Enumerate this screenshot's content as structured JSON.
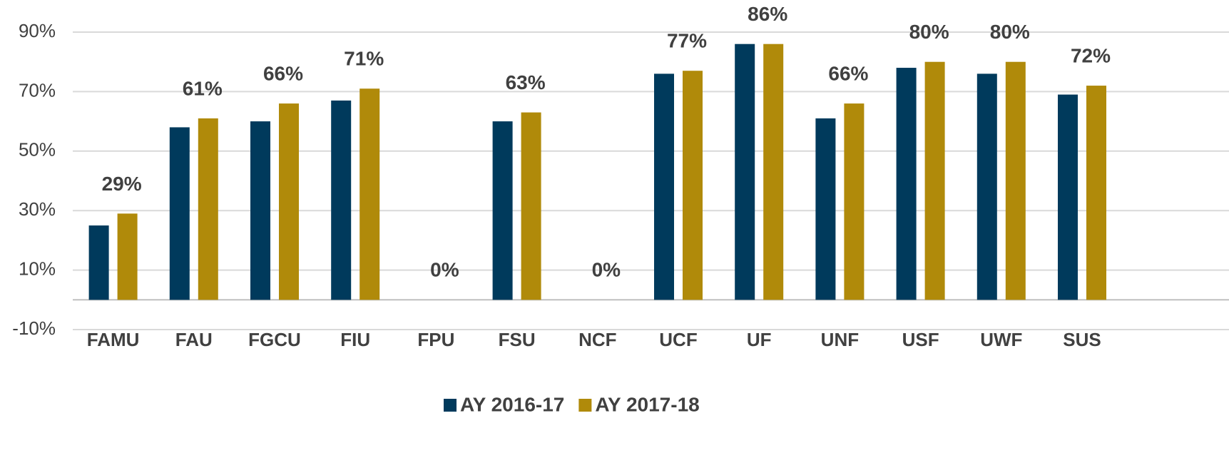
{
  "chart_data": {
    "type": "bar",
    "categories": [
      "FAMU",
      "FAU",
      "FGCU",
      "FIU",
      "FPU",
      "FSU",
      "NCF",
      "UCF",
      "UF",
      "UNF",
      "USF",
      "UWF",
      "SUS"
    ],
    "series": [
      {
        "name": "AY 2016-17",
        "color": "#003a5c",
        "values": [
          25,
          58,
          60,
          67,
          null,
          60,
          null,
          76,
          86,
          61,
          78,
          76,
          69
        ]
      },
      {
        "name": "AY 2017-18",
        "color": "#b08a0a",
        "values": [
          29,
          61,
          66,
          71,
          0,
          63,
          0,
          77,
          86,
          66,
          80,
          80,
          72
        ],
        "value_labels": [
          "29%",
          "61%",
          "66%",
          "71%",
          "0%",
          "63%",
          "0%",
          "77%",
          "86%",
          "66%",
          "80%",
          "80%",
          "72%"
        ]
      }
    ],
    "ylim": [
      -10,
      90
    ],
    "yticks": [
      {
        "value": -10,
        "label": "-10%"
      },
      {
        "value": 10,
        "label": "10%"
      },
      {
        "value": 30,
        "label": "30%"
      },
      {
        "value": 50,
        "label": "50%"
      },
      {
        "value": 70,
        "label": "70%"
      },
      {
        "value": 90,
        "label": "90%"
      }
    ],
    "grid": true,
    "legend": "bottom"
  }
}
